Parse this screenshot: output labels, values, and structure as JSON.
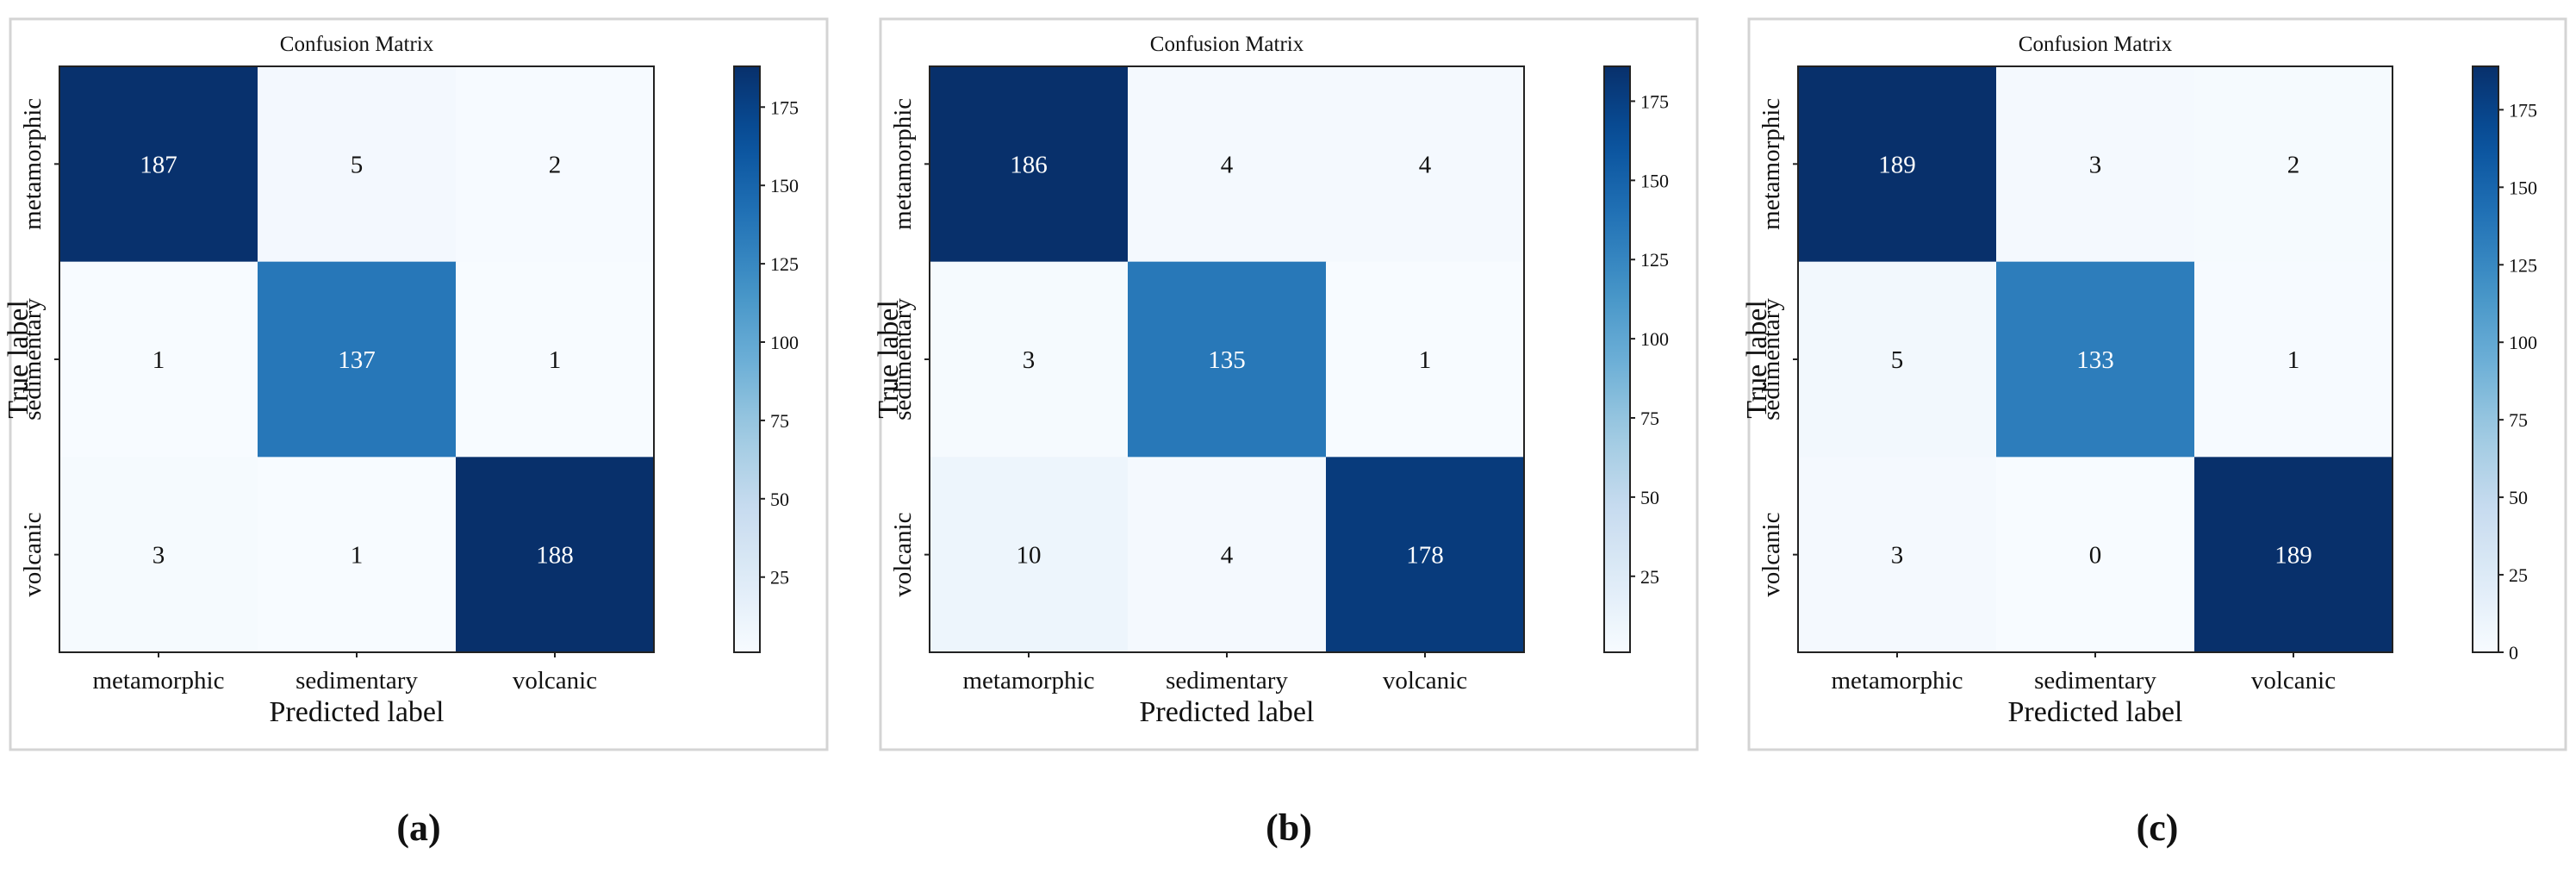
{
  "chart_data": [
    {
      "type": "heatmap",
      "panel_label": "(a)",
      "title": "Confusion Matrix",
      "xlabel": "Predicted label",
      "ylabel": "True label",
      "x_categories": [
        "metamorphic",
        "sedimentary",
        "volcanic"
      ],
      "y_categories": [
        "metamorphic",
        "sedimentary",
        "volcanic"
      ],
      "values": [
        [
          187,
          5,
          2
        ],
        [
          1,
          137,
          1
        ],
        [
          3,
          1,
          188
        ]
      ],
      "colorbar": {
        "colormap": "Blues",
        "range": [
          1,
          188
        ],
        "ticks": [
          25,
          50,
          75,
          100,
          125,
          150,
          175
        ]
      }
    },
    {
      "type": "heatmap",
      "panel_label": "(b)",
      "title": "Confusion Matrix",
      "xlabel": "Predicted label",
      "ylabel": "True label",
      "x_categories": [
        "metamorphic",
        "sedimentary",
        "volcanic"
      ],
      "y_categories": [
        "metamorphic",
        "sedimentary",
        "volcanic"
      ],
      "values": [
        [
          186,
          4,
          4
        ],
        [
          3,
          135,
          1
        ],
        [
          10,
          4,
          178
        ]
      ],
      "colorbar": {
        "colormap": "Blues",
        "range": [
          1,
          186
        ],
        "ticks": [
          25,
          50,
          75,
          100,
          125,
          150,
          175
        ]
      }
    },
    {
      "type": "heatmap",
      "panel_label": "(c)",
      "title": "Confusion Matrix",
      "xlabel": "Predicted label",
      "ylabel": "True label",
      "x_categories": [
        "metamorphic",
        "sedimentary",
        "volcanic"
      ],
      "y_categories": [
        "metamorphic",
        "sedimentary",
        "volcanic"
      ],
      "values": [
        [
          189,
          3,
          2
        ],
        [
          5,
          133,
          1
        ],
        [
          3,
          0,
          189
        ]
      ],
      "colorbar": {
        "colormap": "Blues",
        "range": [
          0,
          189
        ],
        "ticks": [
          0,
          25,
          50,
          75,
          100,
          125,
          150,
          175
        ]
      }
    }
  ]
}
